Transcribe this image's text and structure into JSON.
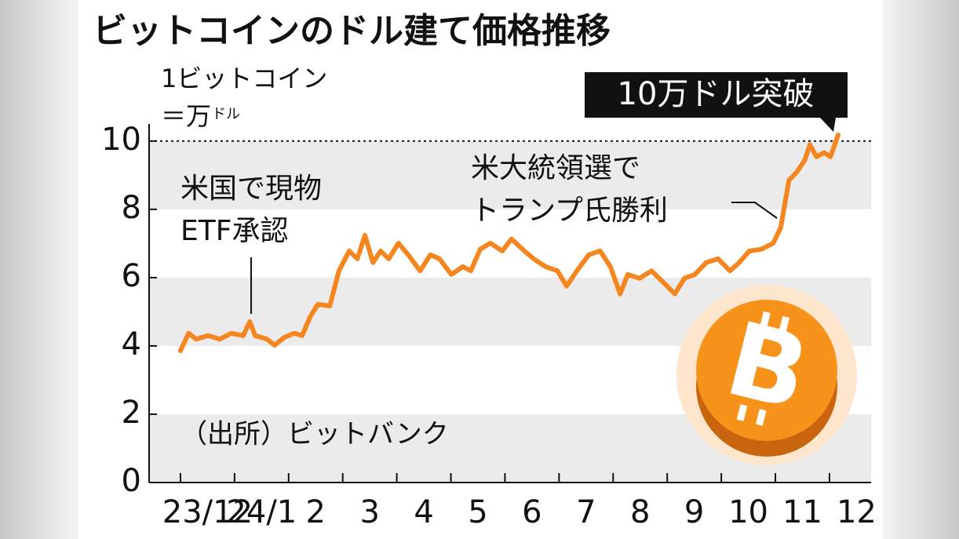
{
  "chart_data": {
    "type": "line",
    "title": "ビットコインのドル建て価格推移",
    "unit_label": [
      "1ビットコイン",
      "＝万",
      "ドル"
    ],
    "source": "（出所）ビットバンク",
    "annotations": [
      {
        "text": [
          "米国で現物",
          "ETF承認"
        ]
      },
      {
        "text": [
          "米大統領選で",
          "トランプ氏勝利"
        ]
      },
      {
        "text": [
          "10万ドル突破"
        ]
      }
    ],
    "x": [
      0,
      0.15,
      0.29,
      0.51,
      0.73,
      0.94,
      1.16,
      1.28,
      1.38,
      1.6,
      1.74,
      1.92,
      2.1,
      2.25,
      2.39,
      2.54,
      2.76,
      2.93,
      3.12,
      3.27,
      3.41,
      3.56,
      3.7,
      3.85,
      4.03,
      4.21,
      4.43,
      4.62,
      4.79,
      5.01,
      5.22,
      5.37,
      5.54,
      5.73,
      5.95,
      6.12,
      6.36,
      6.53,
      6.75,
      6.97,
      7.14,
      7.33,
      7.55,
      7.76,
      7.95,
      8.13,
      8.27,
      8.49,
      8.71,
      8.93,
      9.14,
      9.32,
      9.51,
      9.72,
      9.94,
      10.16,
      10.33,
      10.52,
      10.74,
      10.96,
      11.1,
      11.25,
      11.39,
      11.54,
      11.64,
      11.76,
      11.9,
      12.02,
      12.16
    ],
    "values": [
      3.86,
      4.37,
      4.2,
      4.3,
      4.2,
      4.37,
      4.3,
      4.71,
      4.3,
      4.2,
      4.02,
      4.25,
      4.37,
      4.3,
      4.83,
      5.22,
      5.17,
      6.2,
      6.78,
      6.55,
      7.24,
      6.44,
      6.78,
      6.55,
      7.01,
      6.67,
      6.2,
      6.67,
      6.55,
      6.09,
      6.32,
      6.2,
      6.83,
      7.01,
      6.78,
      7.13,
      6.78,
      6.55,
      6.32,
      6.2,
      5.75,
      6.2,
      6.67,
      6.78,
      6.32,
      5.52,
      6.09,
      5.98,
      6.2,
      5.86,
      5.52,
      5.98,
      6.09,
      6.44,
      6.55,
      6.2,
      6.44,
      6.78,
      6.83,
      7.01,
      7.47,
      8.85,
      9.08,
      9.43,
      9.89,
      9.54,
      9.66,
      9.54,
      10.18
    ],
    "color": "#f5861f",
    "reference_line": 10,
    "xlim": [
      -0.58,
      12.77
    ],
    "xticks": [
      {
        "value": 0,
        "label": "23/12"
      },
      {
        "value": 1,
        "label": "24/1"
      },
      2,
      3,
      4,
      5,
      6,
      7,
      8,
      9,
      10,
      11,
      12
    ],
    "ylim": [
      0,
      10.5
    ],
    "yticks": [
      0,
      2,
      4,
      6,
      8,
      10
    ],
    "bands": true
  }
}
